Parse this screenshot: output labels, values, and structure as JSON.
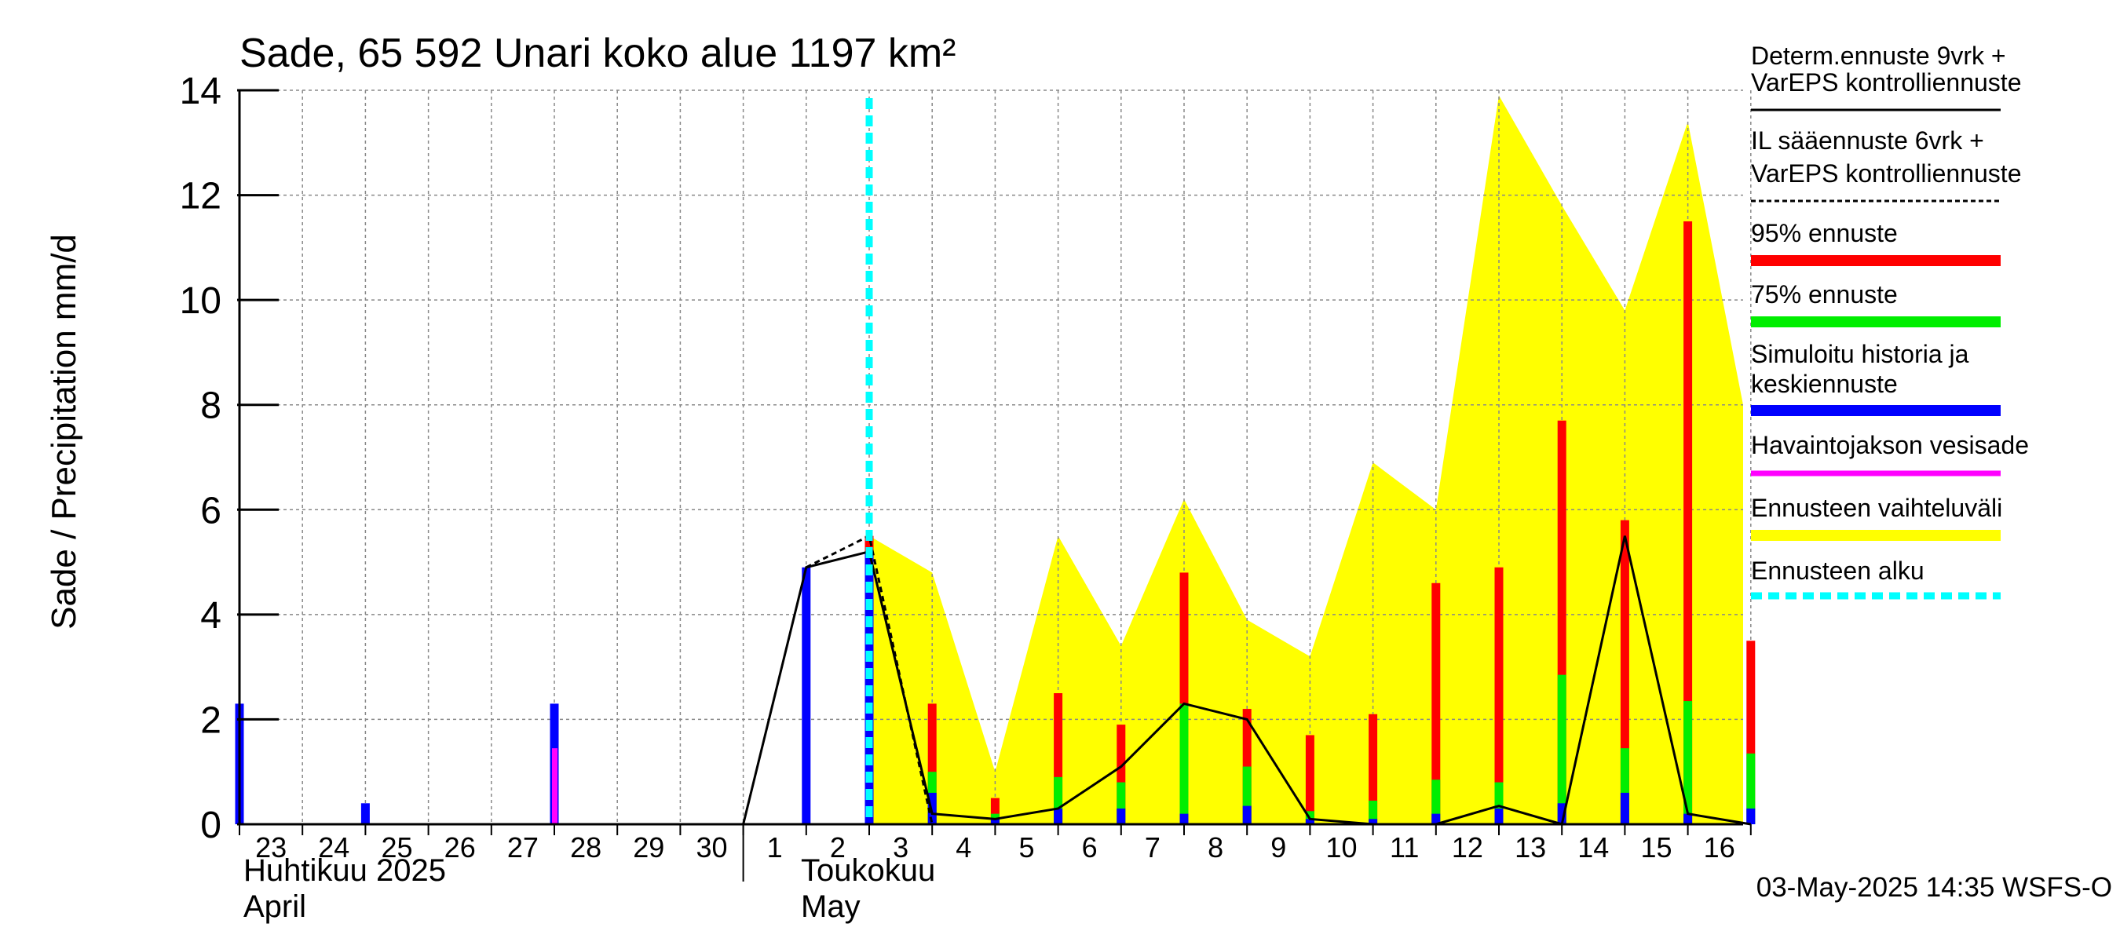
{
  "title": "Sade, 65 592 Unari koko alue 1197 km²",
  "footer": "03-May-2025 14:35 WSFS-O",
  "colors": {
    "band": "#ffff00",
    "p95": "#ff0000",
    "p75": "#00ee00",
    "mean": "#0000ff",
    "observed": "#ff00ff",
    "forecast_start": "#00ffff",
    "grid": "#888888"
  },
  "chart_data": {
    "type": "bar",
    "ylabel": "Sade / Precipitation   mm/d",
    "ylim": [
      0,
      14
    ],
    "yticks": [
      "0",
      "2",
      "4",
      "6",
      "8",
      "10",
      "12",
      "14"
    ],
    "day_labels": [
      "23",
      "24",
      "25",
      "26",
      "27",
      "28",
      "29",
      "30",
      "1",
      "2",
      "3",
      "4",
      "5",
      "6",
      "7",
      "8",
      "9",
      "10",
      "11",
      "12",
      "13",
      "14",
      "15",
      "16"
    ],
    "month_labels": [
      {
        "fi": "Huhtikuu  2025",
        "en": "April"
      },
      {
        "fi": "Toukokuu",
        "en": "May"
      }
    ],
    "forecast_start_day": 10,
    "legend": [
      {
        "label": "Determ.ennuste 9vrk +\nVarEPS kontrolliennuste",
        "style": "solid-black"
      },
      {
        "label": "IL sääennuste 6vrk  +\n  VarEPS kontrolliennuste",
        "style": "dashed-black"
      },
      {
        "label": "95% ennuste",
        "style": "red"
      },
      {
        "label": "75% ennuste",
        "style": "green"
      },
      {
        "label": "Simuloitu historia ja\nkeskiennuste",
        "style": "blue"
      },
      {
        "label": "Havaintojakson vesisade",
        "style": "magenta"
      },
      {
        "label": "Ennusteen vaihteluväli",
        "style": "yellow"
      },
      {
        "label": "Ennusteen alku",
        "style": "cyan-dashed"
      }
    ],
    "history_bars": [
      {
        "day": 0,
        "value": 2.3
      },
      {
        "day": 2,
        "value": 0.4
      },
      {
        "day": 5,
        "value": 2.3
      },
      {
        "day": 9,
        "value": 4.9
      },
      {
        "day": 10,
        "value": 5.2
      }
    ],
    "observed_bars": [
      {
        "day": 5,
        "value": 1.45
      }
    ],
    "forecast_bars": [
      {
        "day": 10,
        "p95": 5.5,
        "p75": 5.2,
        "mean": 5.2
      },
      {
        "day": 11,
        "p95": 2.3,
        "p75": 1.0,
        "mean": 0.6
      },
      {
        "day": 12,
        "p95": 0.5,
        "p75": 0.2,
        "mean": 0.1
      },
      {
        "day": 13,
        "p95": 2.5,
        "p75": 0.9,
        "mean": 0.3
      },
      {
        "day": 14,
        "p95": 1.9,
        "p75": 0.8,
        "mean": 0.3
      },
      {
        "day": 15,
        "p95": 4.8,
        "p75": 2.3,
        "mean": 0.2
      },
      {
        "day": 16,
        "p95": 2.2,
        "p75": 1.1,
        "mean": 0.35
      },
      {
        "day": 17,
        "p95": 1.7,
        "p75": 0.25,
        "mean": 0.1
      },
      {
        "day": 18,
        "p95": 2.1,
        "p75": 0.45,
        "mean": 0.1
      },
      {
        "day": 19,
        "p95": 4.6,
        "p75": 0.85,
        "mean": 0.2
      },
      {
        "day": 20,
        "p95": 4.9,
        "p75": 0.8,
        "mean": 0.3
      },
      {
        "day": 21,
        "p95": 7.7,
        "p75": 2.85,
        "mean": 0.4
      },
      {
        "day": 22,
        "p95": 5.8,
        "p75": 1.45,
        "mean": 0.6
      },
      {
        "day": 23,
        "p95": 11.5,
        "p75": 2.35,
        "mean": 0.2
      },
      {
        "day": 24,
        "p95": 3.5,
        "p75": 1.35,
        "mean": 0.3
      }
    ],
    "band_upper": [
      {
        "day": 10,
        "value": 5.5
      },
      {
        "day": 11,
        "value": 4.8
      },
      {
        "day": 12,
        "value": 1.0
      },
      {
        "day": 13,
        "value": 5.5
      },
      {
        "day": 14,
        "value": 3.4
      },
      {
        "day": 15,
        "value": 6.2
      },
      {
        "day": 16,
        "value": 3.9
      },
      {
        "day": 17,
        "value": 3.2
      },
      {
        "day": 18,
        "value": 6.9
      },
      {
        "day": 19,
        "value": 6.0
      },
      {
        "day": 20,
        "value": 13.9
      },
      {
        "day": 21,
        "value": 11.8
      },
      {
        "day": 22,
        "value": 9.8
      },
      {
        "day": 23,
        "value": 13.4
      },
      {
        "day": 24,
        "value": 8.0
      },
      {
        "day": 24.3,
        "value": 7.8
      }
    ],
    "determ_line": [
      {
        "day": 8,
        "value": 0
      },
      {
        "day": 9,
        "value": 4.9
      },
      {
        "day": 10,
        "value": 5.2
      },
      {
        "day": 11,
        "value": 0.2
      },
      {
        "day": 12,
        "value": 0.1
      },
      {
        "day": 13,
        "value": 0.3
      },
      {
        "day": 14,
        "value": 1.1
      },
      {
        "day": 15,
        "value": 2.3
      },
      {
        "day": 16,
        "value": 2.0
      },
      {
        "day": 17,
        "value": 0.1
      },
      {
        "day": 18,
        "value": 0.0
      },
      {
        "day": 19,
        "value": 0.0
      },
      {
        "day": 20,
        "value": 0.35
      },
      {
        "day": 21,
        "value": 0.0
      },
      {
        "day": 22,
        "value": 5.5
      },
      {
        "day": 23,
        "value": 0.2
      },
      {
        "day": 24,
        "value": 0.0
      }
    ],
    "il_line": [
      {
        "day": 9,
        "value": 4.9
      },
      {
        "day": 10,
        "value": 5.5
      },
      {
        "day": 11,
        "value": 0.0
      },
      {
        "day": 12,
        "value": 0.0
      },
      {
        "day": 13,
        "value": 0.0
      },
      {
        "day": 14,
        "value": 0.0
      },
      {
        "day": 15,
        "value": 0.0
      },
      {
        "day": 16,
        "value": 0.0
      }
    ]
  }
}
